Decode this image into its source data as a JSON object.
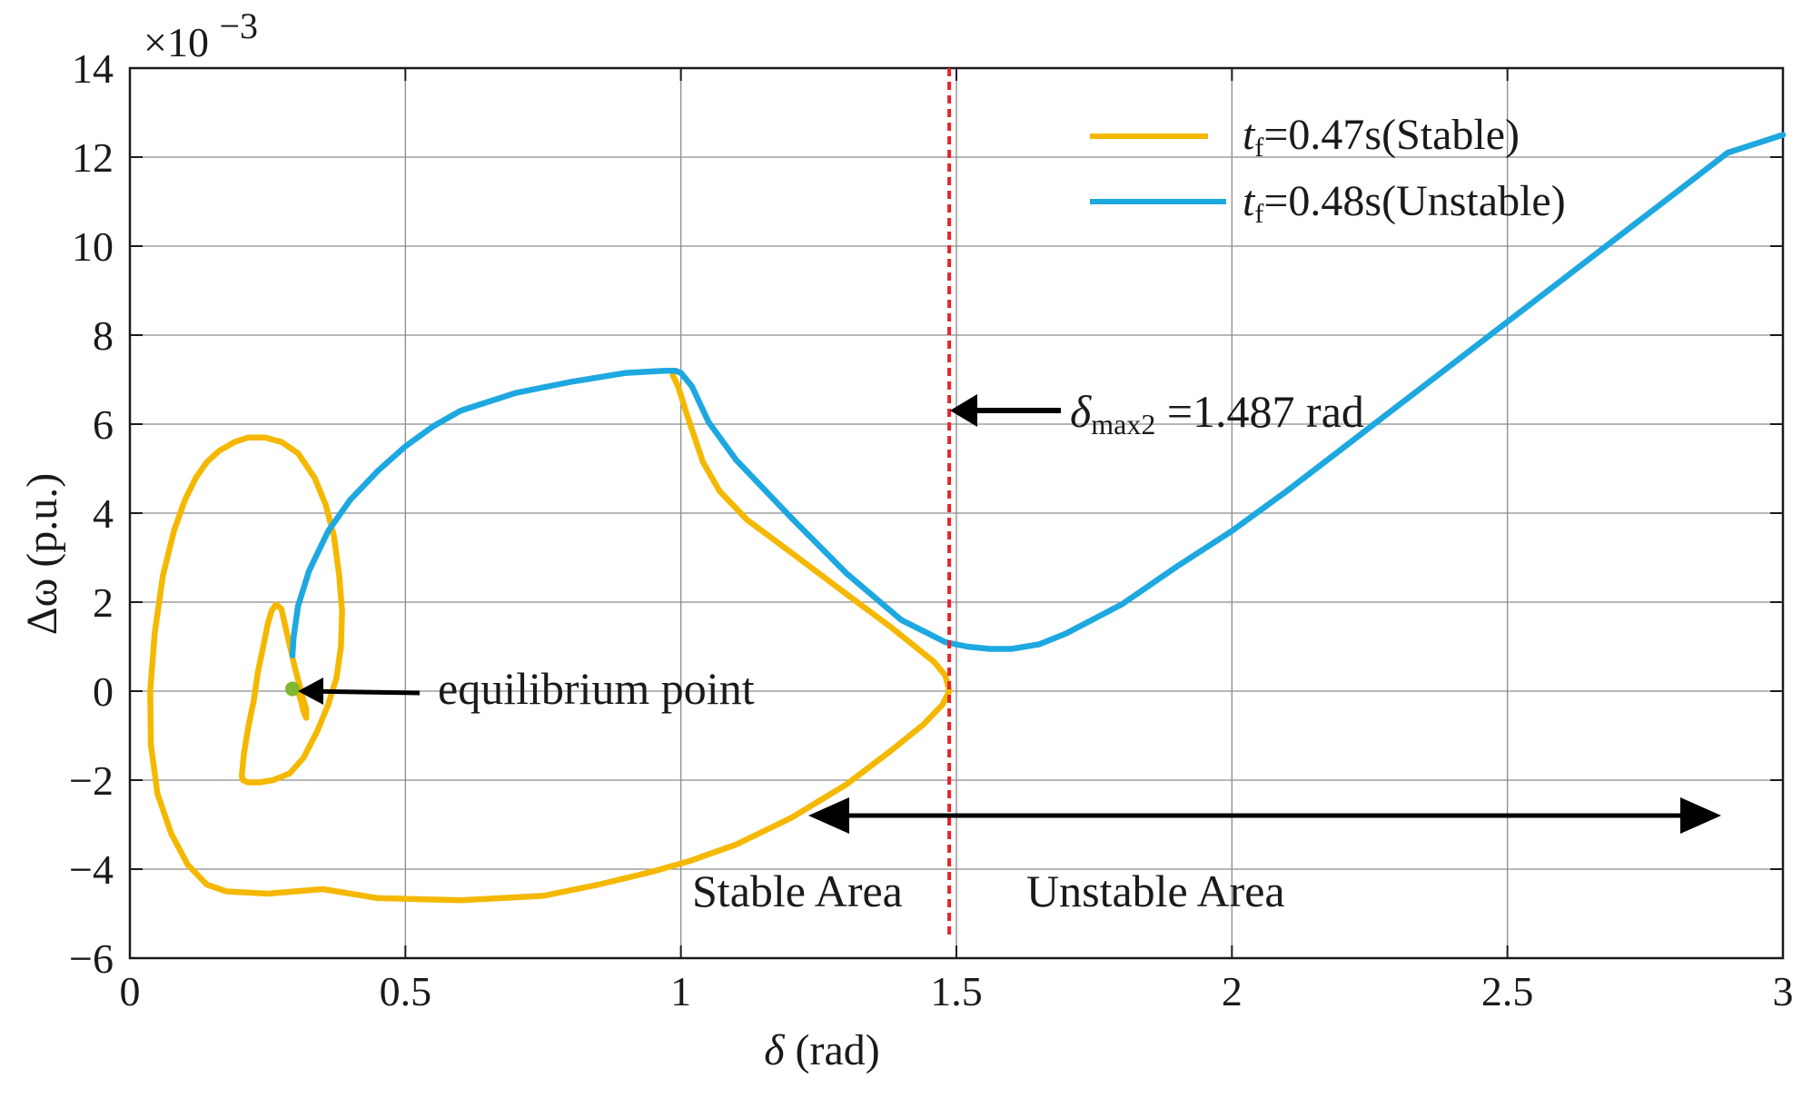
{
  "chart_data": {
    "type": "line",
    "title": "",
    "xlabel": {
      "symbol": "δ",
      "unit": " (rad)"
    },
    "ylabel": {
      "symbol": "Δω",
      "unit": " (p.u.)"
    },
    "xlim": [
      0,
      3
    ],
    "ylim": [
      -6,
      14
    ],
    "y_exponent_label": {
      "base": "×10",
      "exponent": "−3"
    },
    "x_ticks": [
      0,
      0.5,
      1,
      1.5,
      2,
      2.5,
      3
    ],
    "x_tick_labels": [
      "0",
      "0.5",
      "1",
      "1.5",
      "2",
      "2.5",
      "3"
    ],
    "y_ticks": [
      14,
      12,
      10,
      8,
      6,
      4,
      2,
      0,
      -2,
      -4,
      -6
    ],
    "y_tick_labels": [
      "14",
      "12",
      "10",
      "8",
      "6",
      "4",
      "2",
      "0",
      "−2",
      "−4",
      "−6"
    ],
    "grid": true,
    "legend_position": "top-right",
    "series": [
      {
        "id": "stable",
        "legend": {
          "var": "t",
          "sub": "f",
          "rest": "=0.47s(Stable)"
        },
        "color": "#F5B800",
        "x": [
          0.3,
          0.305,
          0.31,
          0.315,
          0.32,
          0.32,
          0.315,
          0.3,
          0.285,
          0.275,
          0.265,
          0.257,
          0.25,
          0.242,
          0.232,
          0.225,
          0.215,
          0.207,
          0.203,
          0.205,
          0.215,
          0.235,
          0.26,
          0.29,
          0.315,
          0.34,
          0.36,
          0.375,
          0.383,
          0.385,
          0.38,
          0.37,
          0.355,
          0.335,
          0.305,
          0.275,
          0.245,
          0.215,
          0.19,
          0.162,
          0.14,
          0.12,
          0.1,
          0.08,
          0.06,
          0.045,
          0.037,
          0.038,
          0.05,
          0.075,
          0.105,
          0.14,
          0.175,
          0.25,
          0.35,
          0.45,
          0.6,
          0.75,
          0.85,
          0.95,
          1.02,
          1.1,
          1.2,
          1.3,
          1.38,
          1.44,
          1.475,
          1.487,
          1.48,
          1.46,
          1.42,
          1.38,
          1.32,
          1.25,
          1.18,
          1.12,
          1.07,
          1.04,
          1.01,
          0.995,
          0.985
        ],
        "y": [
          0.0,
          0.0,
          -0.2,
          -0.45,
          -0.6,
          -0.4,
          -0.2,
          0.5,
          1.3,
          1.85,
          1.95,
          1.8,
          1.5,
          1.0,
          0.4,
          -0.2,
          -0.8,
          -1.4,
          -1.9,
          -2.0,
          -2.05,
          -2.05,
          -2.0,
          -1.85,
          -1.5,
          -0.9,
          -0.3,
          0.3,
          1.0,
          1.8,
          2.6,
          3.5,
          4.2,
          4.8,
          5.35,
          5.6,
          5.7,
          5.7,
          5.6,
          5.4,
          5.15,
          4.8,
          4.3,
          3.6,
          2.6,
          1.3,
          0.0,
          -1.2,
          -2.3,
          -3.2,
          -3.9,
          -4.35,
          -4.5,
          -4.55,
          -4.45,
          -4.65,
          -4.7,
          -4.6,
          -4.35,
          -4.05,
          -3.8,
          -3.45,
          -2.85,
          -2.1,
          -1.35,
          -0.75,
          -0.3,
          0.0,
          0.35,
          0.65,
          1.05,
          1.45,
          2.0,
          2.65,
          3.3,
          3.85,
          4.5,
          5.15,
          6.25,
          6.85,
          7.1
        ]
      },
      {
        "id": "unstable",
        "legend": {
          "var": "t",
          "sub": "f",
          "rest": "=0.48s(Unstable)"
        },
        "color": "#1EA8E0",
        "x": [
          0.295,
          0.297,
          0.305,
          0.325,
          0.36,
          0.4,
          0.45,
          0.5,
          0.55,
          0.6,
          0.7,
          0.8,
          0.9,
          0.97,
          0.99,
          1.0,
          1.02,
          1.05,
          1.1,
          1.2,
          1.3,
          1.4,
          1.48,
          1.52,
          1.56,
          1.6,
          1.65,
          1.7,
          1.8,
          1.9,
          2.0,
          2.1,
          2.2,
          2.3,
          2.4,
          2.5,
          2.6,
          2.7,
          2.8,
          2.9,
          3.0
        ],
        "y": [
          0.8,
          1.2,
          1.9,
          2.7,
          3.6,
          4.3,
          4.95,
          5.5,
          5.95,
          6.3,
          6.7,
          6.95,
          7.15,
          7.2,
          7.2,
          7.15,
          6.85,
          6.05,
          5.2,
          3.9,
          2.65,
          1.6,
          1.1,
          1.0,
          0.95,
          0.95,
          1.05,
          1.3,
          1.95,
          2.8,
          3.6,
          4.5,
          5.45,
          6.4,
          7.35,
          8.3,
          9.25,
          10.2,
          11.15,
          12.1,
          12.5
        ]
      }
    ],
    "annotations": {
      "equilibrium": {
        "label": "equilibrium point",
        "x": 0.295,
        "y": 0.05,
        "color": "#7DB82E"
      },
      "delta_max": {
        "x": 1.487,
        "var": "δ",
        "sub": "max2",
        "rest": " =1.487 rad",
        "color": "#E8232A"
      },
      "stable_area": {
        "label": "Stable Area"
      },
      "unstable_area": {
        "label": "Unstable Area"
      }
    }
  }
}
